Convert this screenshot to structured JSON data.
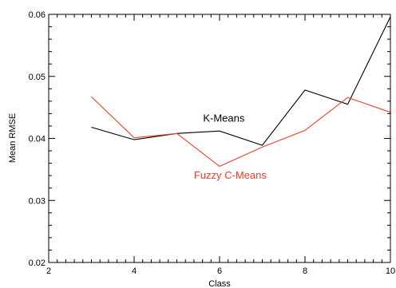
{
  "chart_data": {
    "type": "line",
    "xlabel": "Class",
    "ylabel": "Mean RMSE",
    "xlim": [
      2,
      10
    ],
    "ylim": [
      0.02,
      0.06
    ],
    "x_ticks": [
      2,
      4,
      6,
      8,
      10
    ],
    "y_ticks": [
      0.02,
      0.03,
      0.04,
      0.05,
      0.06
    ],
    "x_tick_labels": [
      "2",
      "4",
      "6",
      "8",
      "10"
    ],
    "y_tick_labels": [
      "0.02",
      "0.03",
      "0.04",
      "0.05",
      "0.06"
    ],
    "x_minor_step": 0.2,
    "y_minor_step": 0.002,
    "grid": false,
    "series": [
      {
        "name": "K-Means",
        "color": "#000000",
        "x": [
          3,
          4,
          5,
          6,
          7,
          8,
          9,
          10
        ],
        "y": [
          0.0418,
          0.0398,
          0.0408,
          0.0412,
          0.0389,
          0.0478,
          0.0455,
          0.0596
        ]
      },
      {
        "name": "Fuzzy C-Means",
        "color": "#e8412c",
        "x": [
          3,
          4,
          5,
          6,
          7,
          8,
          9,
          10
        ],
        "y": [
          0.0467,
          0.0401,
          0.0408,
          0.0355,
          0.0386,
          0.0413,
          0.0466,
          0.0442
        ]
      }
    ],
    "annotations": [
      {
        "text": "K-Means",
        "series": "K-Means",
        "x": 6.1,
        "y": 0.0427
      },
      {
        "text": "Fuzzy C-Means",
        "series": "Fuzzy C-Means",
        "x": 6.25,
        "y": 0.0335
      }
    ]
  }
}
